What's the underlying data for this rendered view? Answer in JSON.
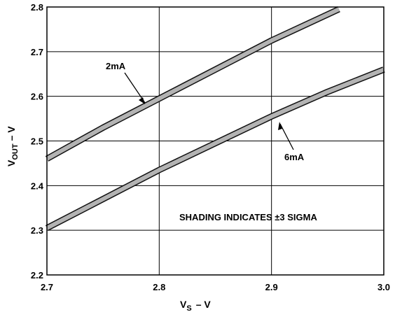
{
  "chart_data": {
    "type": "line",
    "xlabel_main": "V",
    "xlabel_sub": "S",
    "xlabel_tail": "– V",
    "ylabel_main": "V",
    "ylabel_sub": "OUT",
    "ylabel_tail": "– V",
    "xlim": [
      2.7,
      3.0
    ],
    "ylim": [
      2.2,
      2.8
    ],
    "xticks": [
      "2.7",
      "2.8",
      "2.9",
      "3.0"
    ],
    "yticks": [
      "2.2",
      "2.3",
      "2.4",
      "2.5",
      "2.6",
      "2.7",
      "2.8"
    ],
    "xtick_values": [
      2.7,
      2.8,
      2.9,
      3.0
    ],
    "ytick_values": [
      2.2,
      2.3,
      2.4,
      2.5,
      2.6,
      2.7,
      2.8
    ],
    "grid": true,
    "series": [
      {
        "name": "2mA",
        "x": [
          2.7,
          2.75,
          2.8,
          2.85,
          2.9,
          2.96
        ],
        "y": [
          2.46,
          2.53,
          2.595,
          2.66,
          2.725,
          2.795
        ]
      },
      {
        "name": "6mA",
        "x": [
          2.7,
          2.75,
          2.8,
          2.85,
          2.9,
          2.95,
          3.0
        ],
        "y": [
          2.305,
          2.37,
          2.435,
          2.495,
          2.555,
          2.61,
          2.66
        ]
      }
    ],
    "annotations": {
      "label_2mA": "2mA",
      "label_6mA": "6mA",
      "note": "SHADING INDICATES ±3 SIGMA"
    },
    "colors": {
      "band": "#b3b3b3",
      "line": "#111111",
      "grid": "#000000"
    }
  }
}
